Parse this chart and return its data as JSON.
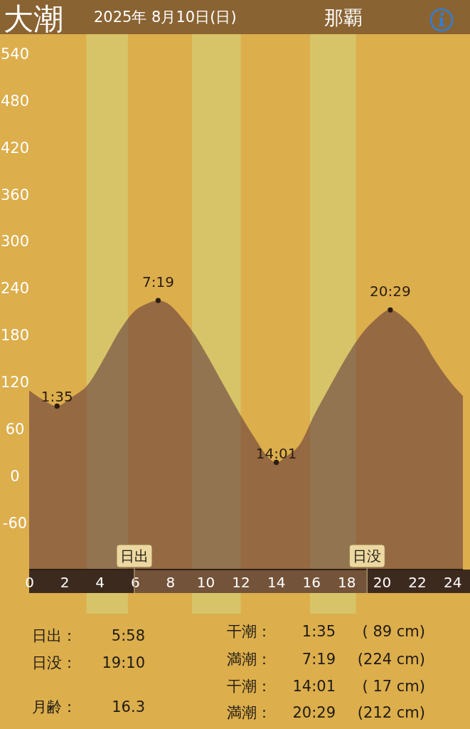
{
  "chart_data": {
    "type": "area",
    "title": "大潮",
    "subtitle": "2025年 8月10日(日)",
    "xlim": [
      0,
      24.6
    ],
    "xticks": [
      0,
      2,
      4,
      6,
      8,
      10,
      12,
      14,
      16,
      18,
      20,
      22,
      24
    ],
    "ylim": [
      -120,
      540
    ],
    "yticks": [
      -60,
      0,
      60,
      120,
      180,
      240,
      300,
      360,
      420,
      480,
      540
    ],
    "series": [
      {
        "color": "#4e2438",
        "x": [
          0,
          0.8,
          1.583,
          2.4,
          3.28,
          4.3,
          5.15,
          6.0,
          6.7,
          7.317,
          8.0,
          8.55,
          9.4,
          10.24,
          11.1,
          11.95,
          12.8,
          13.5,
          14.017,
          14.6,
          15.35,
          16.2,
          17.05,
          17.9,
          18.75,
          19.6,
          20.483,
          21.3,
          22.15,
          23.0,
          23.85,
          24.6
        ],
        "values": [
          109,
          97,
          89,
          100,
          115,
          152,
          186,
          211,
          220,
          224,
          218,
          205,
          180,
          148,
          113,
          79,
          48,
          25,
          17,
          25,
          40,
          79,
          114,
          148,
          178,
          199,
          212,
          201,
          180,
          148,
          121,
          102
        ]
      },
      {
        "type": "scatter",
        "marker": "circle",
        "color": "#2b1d14",
        "x": [
          1.583,
          7.317,
          14.017,
          20.483
        ],
        "values": [
          89,
          224,
          17,
          212
        ]
      }
    ],
    "bands": [
      {
        "axis": "x",
        "from": 3.25,
        "to": 5.6,
        "color": "#d8c468"
      },
      {
        "axis": "x",
        "from": 9.23,
        "to": 12.0,
        "color": "#d8c468"
      },
      {
        "axis": "x",
        "from": 15.93,
        "to": 18.54,
        "color": "#d8c468"
      },
      {
        "axis": "y",
        "from": -120,
        "to": 0,
        "color": "#4e2438"
      }
    ],
    "ref_lines": [
      {
        "axis": "x",
        "value": 5.967,
        "label": "日出"
      },
      {
        "axis": "x",
        "value": 19.167,
        "label": "日没"
      }
    ],
    "annotations": [
      "那覇",
      {
        "text": "1:35",
        "x": 1.583,
        "y": 89
      },
      {
        "text": "7:19",
        "x": 7.317,
        "y": 224
      },
      {
        "text": "14:01",
        "x": 14.017,
        "y": 17
      },
      {
        "text": "20:29",
        "x": 20.483,
        "y": 212
      },
      "日出：",
      "5:58",
      "日没：",
      "19:10",
      "月齢：",
      "16.3",
      "干潮：",
      "1:35",
      "( 89 cm)",
      "満潮：",
      "7:19",
      "(224 cm)",
      "干潮：",
      "14:01",
      "( 17 cm)",
      "満潮：",
      "20:29",
      "(212 cm)"
    ]
  }
}
